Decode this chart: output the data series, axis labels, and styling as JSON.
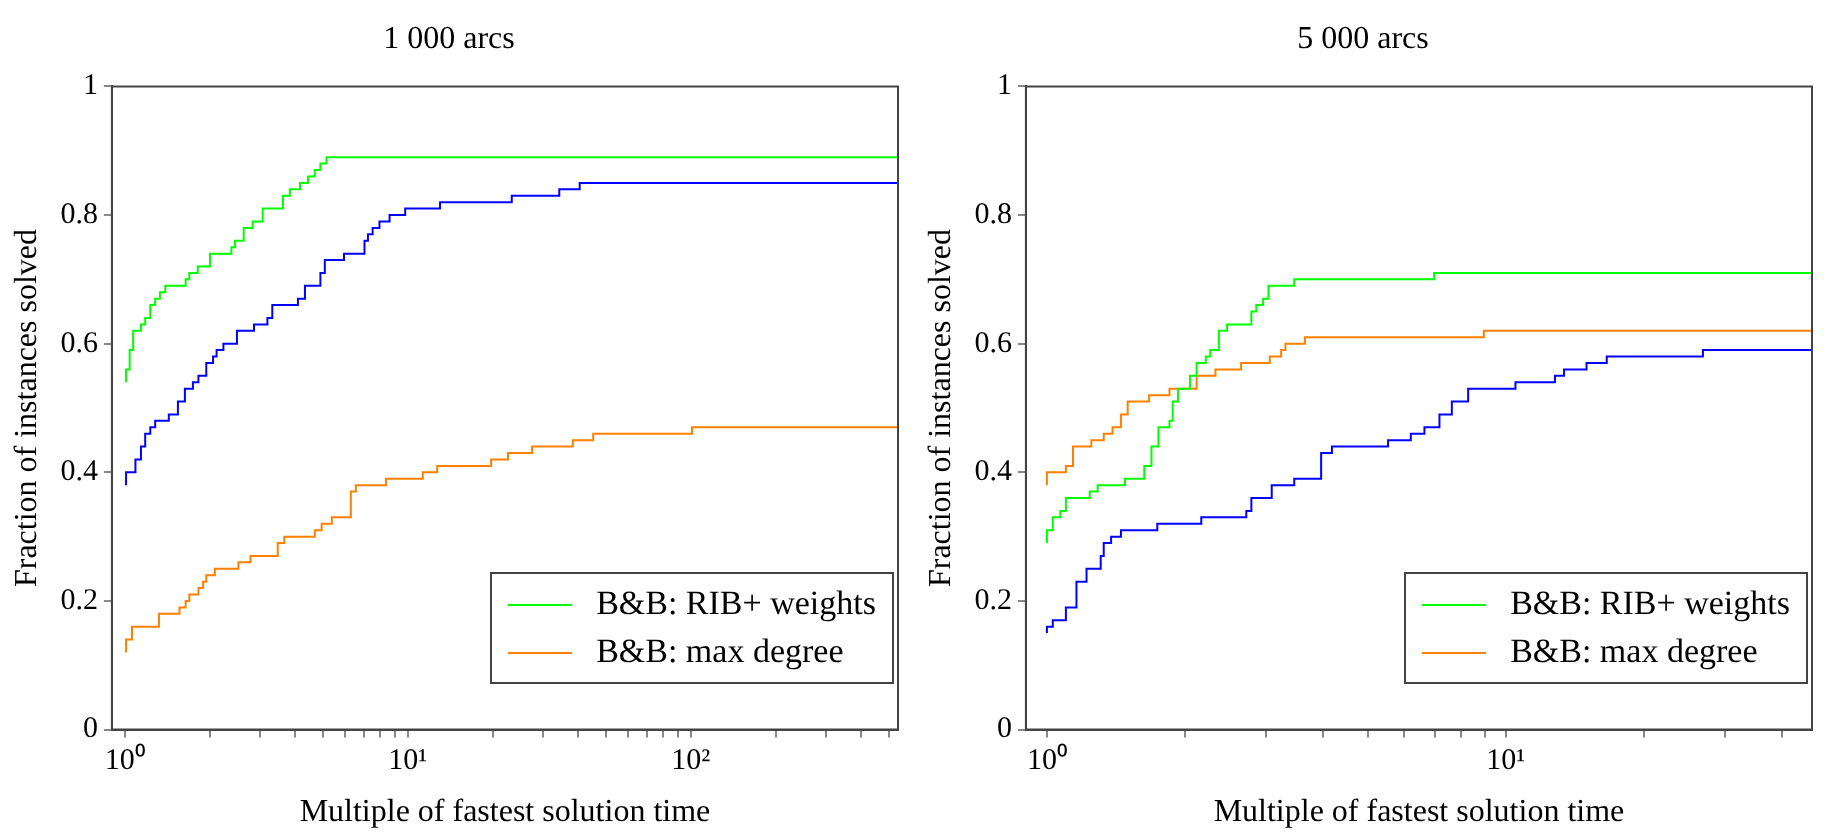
{
  "chart_data": [
    {
      "type": "step",
      "title": "1 000 arcs",
      "xlabel": "Multiple of fastest solution time",
      "ylabel": "Fraction of instances solved",
      "log": "x",
      "grid": false,
      "legend": "bottom right",
      "xlim": [
        0.9,
        540
      ],
      "xticks": [
        {
          "value": 1,
          "label": "10⁰"
        },
        {
          "value": 2,
          "label": null
        },
        {
          "value": 3,
          "label": null
        },
        {
          "value": 4,
          "label": null
        },
        {
          "value": 5,
          "label": null
        },
        {
          "value": 6,
          "label": null
        },
        {
          "value": 7,
          "label": null
        },
        {
          "value": 8,
          "label": null
        },
        {
          "value": 9,
          "label": null
        },
        {
          "value": 10,
          "label": "10¹"
        },
        {
          "value": 20,
          "label": null
        },
        {
          "value": 30,
          "label": null
        },
        {
          "value": 40,
          "label": null
        },
        {
          "value": 50,
          "label": null
        },
        {
          "value": 60,
          "label": null
        },
        {
          "value": 70,
          "label": null
        },
        {
          "value": 80,
          "label": null
        },
        {
          "value": 90,
          "label": null
        },
        {
          "value": 100,
          "label": "10²"
        },
        {
          "value": 200,
          "label": null
        },
        {
          "value": 300,
          "label": null
        },
        {
          "value": 400,
          "label": null
        },
        {
          "value": 500,
          "label": null
        }
      ],
      "ylim": [
        0,
        1
      ],
      "yticks": [
        0,
        0.2,
        0.4,
        0.6,
        0.8,
        1
      ],
      "series": [
        {
          "name": "B&B: RIB+ weights",
          "color": "#00ff00",
          "x": [
            1.01,
            1.04,
            1.07,
            1.14,
            1.18,
            1.23,
            1.28,
            1.33,
            1.39,
            1.64,
            1.69,
            1.81,
            2.0,
            2.38,
            2.45,
            2.63,
            2.83,
            3.07,
            3.62,
            3.83,
            4.16,
            4.44,
            4.69,
            4.91,
            5.16,
            11.8,
            540
          ],
          "values": [
            0.54,
            0.56,
            0.59,
            0.62,
            0.63,
            0.64,
            0.66,
            0.67,
            0.68,
            0.69,
            0.7,
            0.71,
            0.72,
            0.74,
            0.75,
            0.76,
            0.78,
            0.79,
            0.81,
            0.83,
            0.84,
            0.85,
            0.86,
            0.87,
            0.88,
            0.89,
            0.89
          ]
        },
        {
          "name": "B&B: max degree",
          "color": "#ff8000",
          "x": [
            1.01,
            1.06,
            1.32,
            1.56,
            1.64,
            1.69,
            1.82,
            1.89,
            1.94,
            2.08,
            2.52,
            2.78,
            3.47,
            3.66,
            4.69,
            4.96,
            5.39,
            6.29,
            6.55,
            8.37,
            11.3,
            12.7,
            19.7,
            22.6,
            27.5,
            38.3,
            45.2,
            101,
            485,
            540
          ],
          "values": [
            0.12,
            0.14,
            0.16,
            0.18,
            0.19,
            0.2,
            0.21,
            0.22,
            0.23,
            0.24,
            0.25,
            0.26,
            0.27,
            0.29,
            0.3,
            0.31,
            0.32,
            0.33,
            0.37,
            0.38,
            0.39,
            0.4,
            0.41,
            0.42,
            0.43,
            0.44,
            0.45,
            0.46,
            0.47,
            0.47
          ]
        },
        {
          "color": "#0000ff",
          "x": [
            1.01,
            1.09,
            1.14,
            1.18,
            1.23,
            1.28,
            1.43,
            1.54,
            1.63,
            1.74,
            1.82,
            1.94,
            2.05,
            2.11,
            2.23,
            2.49,
            2.86,
            3.19,
            3.32,
            4.09,
            4.33,
            4.91,
            5.09,
            5.95,
            7.03,
            7.23,
            7.51,
            7.94,
            8.62,
            9.79,
            13.0,
            23.3,
            34.3,
            40.5,
            45.9,
            540
          ],
          "values": [
            0.38,
            0.4,
            0.42,
            0.44,
            0.46,
            0.47,
            0.48,
            0.49,
            0.51,
            0.53,
            0.54,
            0.55,
            0.57,
            0.58,
            0.59,
            0.6,
            0.62,
            0.63,
            0.64,
            0.66,
            0.67,
            0.69,
            0.71,
            0.73,
            0.74,
            0.76,
            0.77,
            0.78,
            0.79,
            0.8,
            0.81,
            0.82,
            0.83,
            0.84,
            0.85,
            0.85
          ]
        }
      ]
    },
    {
      "type": "step",
      "title": "5 000 arcs",
      "xlabel": "Multiple of fastest solution time",
      "ylabel": "Fraction of instances solved",
      "log": "x",
      "grid": false,
      "legend": "bottom right",
      "xlim": [
        0.9,
        46.5
      ],
      "xticks": [
        {
          "value": 1,
          "label": "10⁰"
        },
        {
          "value": 2,
          "label": null
        },
        {
          "value": 3,
          "label": null
        },
        {
          "value": 4,
          "label": null
        },
        {
          "value": 5,
          "label": null
        },
        {
          "value": 6,
          "label": null
        },
        {
          "value": 7,
          "label": null
        },
        {
          "value": 8,
          "label": null
        },
        {
          "value": 9,
          "label": null
        },
        {
          "value": 10,
          "label": "10¹"
        },
        {
          "value": 20,
          "label": null
        },
        {
          "value": 30,
          "label": null
        },
        {
          "value": 40,
          "label": null
        }
      ],
      "ylim": [
        0,
        1
      ],
      "yticks": [
        0,
        0.2,
        0.4,
        0.6,
        0.8,
        1
      ],
      "series": [
        {
          "name": "B&B: RIB+ weights",
          "color": "#00ff00",
          "x": [
            1.0,
            1.03,
            1.07,
            1.1,
            1.24,
            1.29,
            1.48,
            1.63,
            1.69,
            1.75,
            1.85,
            1.88,
            1.93,
            2.05,
            2.12,
            2.22,
            2.27,
            2.37,
            2.47,
            2.79,
            2.86,
            2.96,
            3.04,
            3.46,
            6.98,
            13.2,
            46.5
          ],
          "values": [
            0.29,
            0.31,
            0.33,
            0.34,
            0.36,
            0.37,
            0.38,
            0.39,
            0.41,
            0.44,
            0.47,
            0.48,
            0.51,
            0.53,
            0.55,
            0.57,
            0.58,
            0.59,
            0.62,
            0.63,
            0.65,
            0.66,
            0.67,
            0.69,
            0.7,
            0.71,
            0.71
          ]
        },
        {
          "name": "B&B: max degree",
          "color": "#ff8000",
          "x": [
            1.0,
            1.1,
            1.14,
            1.25,
            1.33,
            1.39,
            1.45,
            1.5,
            1.67,
            1.85,
            2.12,
            2.33,
            2.65,
            3.06,
            3.24,
            3.31,
            3.65,
            8.96,
            43.4,
            46.5
          ],
          "values": [
            0.38,
            0.4,
            0.41,
            0.44,
            0.45,
            0.46,
            0.47,
            0.49,
            0.51,
            0.52,
            0.53,
            0.55,
            0.56,
            0.57,
            0.58,
            0.59,
            0.6,
            0.61,
            0.62,
            0.62
          ]
        },
        {
          "color": "#0000ff",
          "x": [
            1.0,
            1.03,
            1.1,
            1.16,
            1.22,
            1.31,
            1.33,
            1.38,
            1.45,
            1.74,
            2.17,
            2.72,
            2.79,
            3.09,
            3.46,
            3.96,
            4.18,
            5.54,
            6.21,
            6.65,
            7.17,
            7.63,
            8.28,
            10.5,
            12.8,
            13.4,
            15.0,
            16.6,
            26.9,
            31.1,
            46.5
          ],
          "values": [
            0.15,
            0.16,
            0.17,
            0.19,
            0.23,
            0.25,
            0.27,
            0.29,
            0.3,
            0.31,
            0.32,
            0.33,
            0.34,
            0.36,
            0.38,
            0.39,
            0.43,
            0.44,
            0.45,
            0.46,
            0.47,
            0.49,
            0.51,
            0.53,
            0.54,
            0.55,
            0.56,
            0.57,
            0.58,
            0.59,
            0.59
          ]
        }
      ]
    }
  ]
}
